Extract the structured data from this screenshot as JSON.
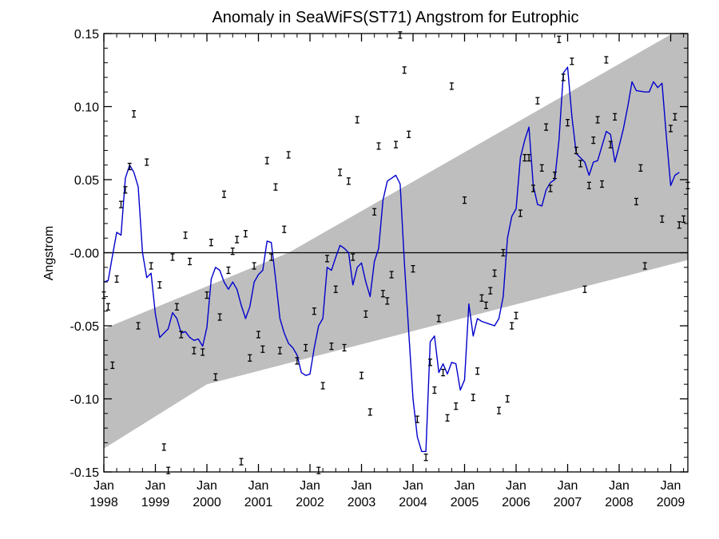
{
  "chart_data": {
    "type": "line",
    "title": "Anomaly in SeaWiFS(ST71) Angstrom for Eutrophic",
    "ylabel": "Angstrom",
    "xlabel": "",
    "xlim": [
      1998.0,
      2009.333
    ],
    "ylim": [
      -0.15,
      0.15
    ],
    "grid": false,
    "x_ticks": [
      {
        "x": 1998.0,
        "month": "Jan",
        "year": "1998"
      },
      {
        "x": 1999.0,
        "month": "Jan",
        "year": "1999"
      },
      {
        "x": 2000.0,
        "month": "Jan",
        "year": "2000"
      },
      {
        "x": 2001.0,
        "month": "Jan",
        "year": "2001"
      },
      {
        "x": 2002.0,
        "month": "Jan",
        "year": "2002"
      },
      {
        "x": 2003.0,
        "month": "Jan",
        "year": "2003"
      },
      {
        "x": 2004.0,
        "month": "Jan",
        "year": "2004"
      },
      {
        "x": 2005.0,
        "month": "Jan",
        "year": "2005"
      },
      {
        "x": 2006.0,
        "month": "Jan",
        "year": "2006"
      },
      {
        "x": 2007.0,
        "month": "Jan",
        "year": "2007"
      },
      {
        "x": 2008.0,
        "month": "Jan",
        "year": "2008"
      },
      {
        "x": 2009.0,
        "month": "Jan",
        "year": "2009"
      }
    ],
    "y_ticks": [
      {
        "y": 0.15,
        "label": "0.15"
      },
      {
        "y": 0.1,
        "label": "0.10"
      },
      {
        "y": 0.05,
        "label": "0.05"
      },
      {
        "y": 0.0,
        "label": "-0.00"
      },
      {
        "y": -0.05,
        "label": "-0.05"
      },
      {
        "y": -0.1,
        "label": "-0.10"
      },
      {
        "y": -0.15,
        "label": "-0.15"
      }
    ],
    "zero_line": 0.0,
    "trend_band": {
      "color": "#bebebe",
      "upper": [
        [
          1998.0,
          -0.052
        ],
        [
          2001.583,
          0.0
        ],
        [
          2009.333,
          0.156
        ]
      ],
      "lower": [
        [
          1998.0,
          -0.134
        ],
        [
          2000.0,
          -0.09
        ],
        [
          2009.333,
          -0.005
        ]
      ]
    },
    "series": [
      {
        "color": "#0000cc",
        "points": [
          [
            1998.0,
            -0.02
          ],
          [
            1998.083,
            -0.019
          ],
          [
            1998.167,
            -0.002
          ],
          [
            1998.25,
            0.014
          ],
          [
            1998.333,
            0.012
          ],
          [
            1998.417,
            0.051
          ],
          [
            1998.5,
            0.06
          ],
          [
            1998.583,
            0.055
          ],
          [
            1998.667,
            0.045
          ],
          [
            1998.75,
            0.0
          ],
          [
            1998.833,
            -0.017
          ],
          [
            1998.917,
            -0.014
          ],
          [
            1999.0,
            -0.042
          ],
          [
            1999.083,
            -0.058
          ],
          [
            1999.167,
            -0.055
          ],
          [
            1999.25,
            -0.052
          ],
          [
            1999.333,
            -0.041
          ],
          [
            1999.417,
            -0.045
          ],
          [
            1999.5,
            -0.055
          ],
          [
            1999.583,
            -0.054
          ],
          [
            1999.667,
            -0.058
          ],
          [
            1999.75,
            -0.06
          ],
          [
            1999.833,
            -0.059
          ],
          [
            1999.917,
            -0.064
          ],
          [
            2000.0,
            -0.051
          ],
          [
            2000.083,
            -0.018
          ],
          [
            2000.167,
            -0.01
          ],
          [
            2000.25,
            -0.012
          ],
          [
            2000.333,
            -0.02
          ],
          [
            2000.417,
            -0.025
          ],
          [
            2000.5,
            -0.02
          ],
          [
            2000.583,
            -0.025
          ],
          [
            2000.667,
            -0.036
          ],
          [
            2000.75,
            -0.045
          ],
          [
            2000.833,
            -0.037
          ],
          [
            2000.917,
            -0.02
          ],
          [
            2001.0,
            -0.015
          ],
          [
            2001.083,
            -0.012
          ],
          [
            2001.167,
            0.008
          ],
          [
            2001.25,
            0.007
          ],
          [
            2001.333,
            -0.018
          ],
          [
            2001.417,
            -0.045
          ],
          [
            2001.5,
            -0.055
          ],
          [
            2001.583,
            -0.062
          ],
          [
            2001.667,
            -0.065
          ],
          [
            2001.75,
            -0.07
          ],
          [
            2001.833,
            -0.082
          ],
          [
            2001.917,
            -0.084
          ],
          [
            2002.0,
            -0.083
          ],
          [
            2002.083,
            -0.065
          ],
          [
            2002.167,
            -0.05
          ],
          [
            2002.25,
            -0.045
          ],
          [
            2002.333,
            -0.01
          ],
          [
            2002.417,
            -0.012
          ],
          [
            2002.5,
            -0.003
          ],
          [
            2002.583,
            0.005
          ],
          [
            2002.667,
            0.003
          ],
          [
            2002.75,
            0.0
          ],
          [
            2002.833,
            -0.022
          ],
          [
            2002.917,
            -0.01
          ],
          [
            2003.0,
            -0.007
          ],
          [
            2003.083,
            -0.02
          ],
          [
            2003.167,
            -0.03
          ],
          [
            2003.25,
            -0.006
          ],
          [
            2003.333,
            0.003
          ],
          [
            2003.417,
            0.036
          ],
          [
            2003.5,
            0.049
          ],
          [
            2003.583,
            0.051
          ],
          [
            2003.667,
            0.053
          ],
          [
            2003.75,
            0.047
          ],
          [
            2003.833,
            -0.007
          ],
          [
            2003.917,
            -0.055
          ],
          [
            2004.0,
            -0.1
          ],
          [
            2004.083,
            -0.126
          ],
          [
            2004.167,
            -0.136
          ],
          [
            2004.25,
            -0.136
          ],
          [
            2004.333,
            -0.061
          ],
          [
            2004.417,
            -0.057
          ],
          [
            2004.5,
            -0.082
          ],
          [
            2004.583,
            -0.076
          ],
          [
            2004.667,
            -0.083
          ],
          [
            2004.75,
            -0.075
          ],
          [
            2004.833,
            -0.076
          ],
          [
            2004.917,
            -0.094
          ],
          [
            2005.0,
            -0.087
          ],
          [
            2005.083,
            -0.035
          ],
          [
            2005.167,
            -0.057
          ],
          [
            2005.25,
            -0.045
          ],
          [
            2005.333,
            -0.047
          ],
          [
            2005.417,
            -0.048
          ],
          [
            2005.5,
            -0.049
          ],
          [
            2005.583,
            -0.05
          ],
          [
            2005.667,
            -0.045
          ],
          [
            2005.75,
            -0.03
          ],
          [
            2005.833,
            0.01
          ],
          [
            2005.917,
            0.025
          ],
          [
            2006.0,
            0.03
          ],
          [
            2006.083,
            0.065
          ],
          [
            2006.167,
            0.077
          ],
          [
            2006.25,
            0.086
          ],
          [
            2006.333,
            0.046
          ],
          [
            2006.417,
            0.033
          ],
          [
            2006.5,
            0.032
          ],
          [
            2006.583,
            0.043
          ],
          [
            2006.667,
            0.048
          ],
          [
            2006.75,
            0.05
          ],
          [
            2006.833,
            0.077
          ],
          [
            2006.917,
            0.123
          ],
          [
            2007.0,
            0.127
          ],
          [
            2007.083,
            0.093
          ],
          [
            2007.167,
            0.068
          ],
          [
            2007.25,
            0.065
          ],
          [
            2007.333,
            0.062
          ],
          [
            2007.417,
            0.053
          ],
          [
            2007.5,
            0.062
          ],
          [
            2007.583,
            0.063
          ],
          [
            2007.667,
            0.073
          ],
          [
            2007.75,
            0.083
          ],
          [
            2007.833,
            0.081
          ],
          [
            2007.917,
            0.062
          ],
          [
            2008.0,
            0.073
          ],
          [
            2008.083,
            0.085
          ],
          [
            2008.167,
            0.1
          ],
          [
            2008.25,
            0.117
          ],
          [
            2008.333,
            0.111
          ],
          [
            2008.5,
            0.11
          ],
          [
            2008.583,
            0.11
          ],
          [
            2008.667,
            0.117
          ],
          [
            2008.75,
            0.113
          ],
          [
            2008.833,
            0.116
          ],
          [
            2008.917,
            0.079
          ],
          [
            2009.0,
            0.046
          ],
          [
            2009.083,
            0.053
          ],
          [
            2009.167,
            0.055
          ]
        ]
      }
    ],
    "error_markers": [
      [
        1998.0,
        -0.029
      ],
      [
        1998.083,
        -0.037
      ],
      [
        1998.167,
        -0.077
      ],
      [
        1998.25,
        -0.018
      ],
      [
        1998.333,
        0.033
      ],
      [
        1998.417,
        0.043
      ],
      [
        1998.5,
        0.059
      ],
      [
        1998.583,
        0.095
      ],
      [
        1998.667,
        -0.05
      ],
      [
        1998.833,
        0.062
      ],
      [
        1998.917,
        -0.009
      ],
      [
        1999.083,
        -0.022
      ],
      [
        1999.167,
        -0.133
      ],
      [
        1999.25,
        -0.149
      ],
      [
        1999.333,
        -0.003
      ],
      [
        1999.417,
        -0.037
      ],
      [
        1999.5,
        -0.056
      ],
      [
        1999.583,
        0.012
      ],
      [
        1999.667,
        -0.006
      ],
      [
        1999.75,
        -0.067
      ],
      [
        1999.917,
        -0.068
      ],
      [
        2000.0,
        -0.029
      ],
      [
        2000.083,
        0.007
      ],
      [
        2000.167,
        -0.085
      ],
      [
        2000.25,
        -0.044
      ],
      [
        2000.333,
        0.04
      ],
      [
        2000.417,
        -0.012
      ],
      [
        2000.5,
        0.001
      ],
      [
        2000.583,
        0.009
      ],
      [
        2000.667,
        -0.143
      ],
      [
        2000.75,
        0.013
      ],
      [
        2000.833,
        -0.072
      ],
      [
        2000.917,
        -0.009
      ],
      [
        2001.0,
        -0.056
      ],
      [
        2001.083,
        -0.066
      ],
      [
        2001.167,
        0.063
      ],
      [
        2001.25,
        -0.003
      ],
      [
        2001.333,
        0.045
      ],
      [
        2001.417,
        -0.067
      ],
      [
        2001.5,
        0.016
      ],
      [
        2001.583,
        0.067
      ],
      [
        2001.75,
        -0.074
      ],
      [
        2001.917,
        -0.065
      ],
      [
        2002.083,
        -0.04
      ],
      [
        2002.167,
        -0.149
      ],
      [
        2002.25,
        -0.091
      ],
      [
        2002.333,
        -0.004
      ],
      [
        2002.417,
        -0.064
      ],
      [
        2002.5,
        -0.025
      ],
      [
        2002.583,
        0.055
      ],
      [
        2002.667,
        -0.065
      ],
      [
        2002.75,
        0.049
      ],
      [
        2002.833,
        -0.003
      ],
      [
        2002.917,
        0.091
      ],
      [
        2003.0,
        -0.084
      ],
      [
        2003.083,
        -0.042
      ],
      [
        2003.167,
        -0.109
      ],
      [
        2003.25,
        0.028
      ],
      [
        2003.333,
        0.073
      ],
      [
        2003.417,
        -0.028
      ],
      [
        2003.5,
        -0.033
      ],
      [
        2003.583,
        -0.015
      ],
      [
        2003.667,
        0.074
      ],
      [
        2003.75,
        0.149
      ],
      [
        2003.833,
        0.125
      ],
      [
        2003.917,
        0.081
      ],
      [
        2004.0,
        -0.011
      ],
      [
        2004.083,
        -0.114
      ],
      [
        2004.25,
        -0.14
      ],
      [
        2004.333,
        -0.075
      ],
      [
        2004.417,
        -0.094
      ],
      [
        2004.5,
        -0.045
      ],
      [
        2004.583,
        -0.082
      ],
      [
        2004.667,
        -0.113
      ],
      [
        2004.75,
        0.114
      ],
      [
        2004.833,
        -0.105
      ],
      [
        2005.0,
        0.036
      ],
      [
        2005.167,
        -0.099
      ],
      [
        2005.25,
        -0.081
      ],
      [
        2005.333,
        -0.031
      ],
      [
        2005.417,
        -0.036
      ],
      [
        2005.5,
        -0.026
      ],
      [
        2005.583,
        -0.014
      ],
      [
        2005.667,
        -0.108
      ],
      [
        2005.75,
        0.0
      ],
      [
        2005.833,
        -0.1
      ],
      [
        2005.917,
        -0.05
      ],
      [
        2006.0,
        -0.043
      ],
      [
        2006.083,
        0.027
      ],
      [
        2006.167,
        0.065
      ],
      [
        2006.25,
        0.065
      ],
      [
        2006.333,
        0.044
      ],
      [
        2006.417,
        0.104
      ],
      [
        2006.5,
        0.058
      ],
      [
        2006.583,
        0.086
      ],
      [
        2006.667,
        0.044
      ],
      [
        2006.75,
        0.053
      ],
      [
        2006.833,
        0.146
      ],
      [
        2006.917,
        0.12
      ],
      [
        2007.0,
        0.089
      ],
      [
        2007.083,
        0.131
      ],
      [
        2007.167,
        0.07
      ],
      [
        2007.25,
        0.061
      ],
      [
        2007.333,
        -0.025
      ],
      [
        2007.417,
        0.046
      ],
      [
        2007.5,
        0.077
      ],
      [
        2007.583,
        0.091
      ],
      [
        2007.667,
        0.047
      ],
      [
        2007.75,
        0.132
      ],
      [
        2007.833,
        0.074
      ],
      [
        2007.917,
        0.093
      ],
      [
        2008.333,
        0.035
      ],
      [
        2008.417,
        0.058
      ],
      [
        2008.5,
        -0.009
      ],
      [
        2008.833,
        0.023
      ],
      [
        2009.0,
        0.085
      ],
      [
        2009.083,
        0.093
      ],
      [
        2009.167,
        0.019
      ],
      [
        2009.25,
        0.023
      ],
      [
        2009.333,
        0.046
      ]
    ]
  }
}
